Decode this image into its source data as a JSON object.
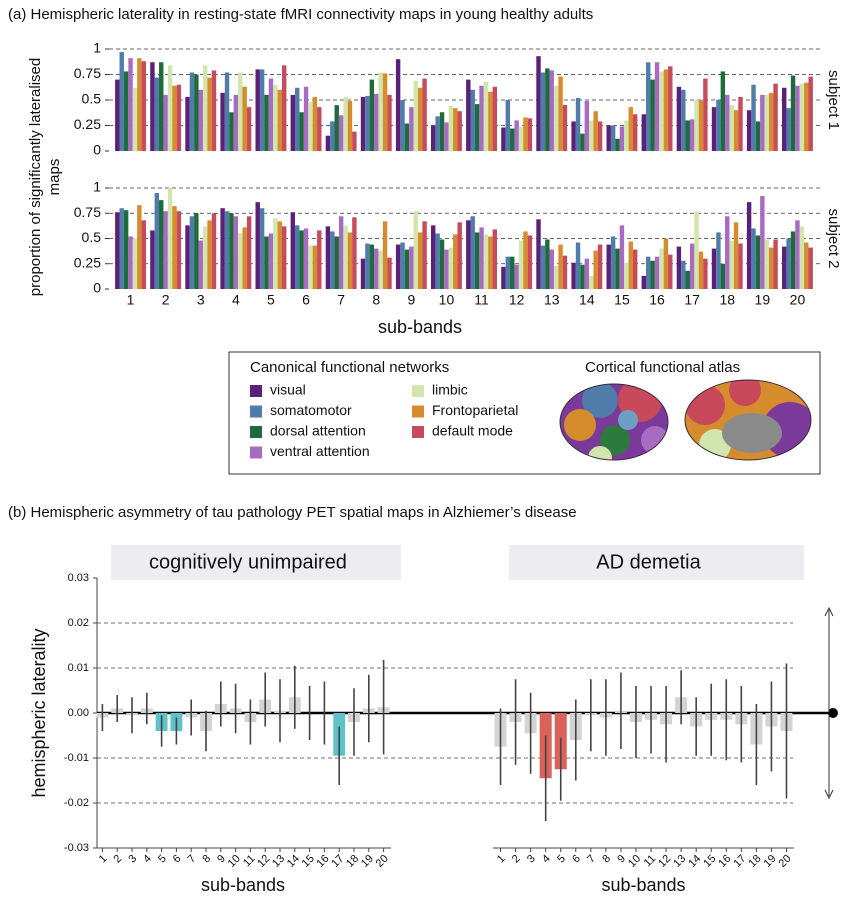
{
  "figure_a": {
    "title": "(a) Hemispheric laterality in resting-state fMRI connectivity maps in young healthy adults",
    "y_label": "proportion of significantly lateralised maps",
    "x_label": "sub-bands",
    "legend_title": "Canonical functional networks",
    "atlas_title": "Cortical functional atlas"
  },
  "figure_b": {
    "title": "(b) Hemispheric asymmetry of tau pathology PET spatial maps in Alzhiemer’s disease",
    "y_label": "hemispheric laterality"
  },
  "chart_data": [
    {
      "type": "grouped_bar",
      "subtitle": "subject 1",
      "ylim": [
        0,
        1
      ],
      "yticks": [
        0,
        0.25,
        0.5,
        0.75,
        1
      ],
      "grid": true,
      "series": [
        {
          "name": "visual",
          "color": "#5b2178",
          "values": [
            0.7,
            0.87,
            0.53,
            0.57,
            0.8,
            0.55,
            0.15,
            0.53,
            0.9,
            0.25,
            0.7,
            0.23,
            0.93,
            0.29,
            0.25,
            0.36,
            0.63,
            0.43,
            0.4,
            0.62
          ]
        },
        {
          "name": "somatomotor",
          "color": "#4f7ca8",
          "values": [
            0.97,
            0.72,
            0.77,
            0.77,
            0.8,
            0.62,
            0.29,
            0.54,
            0.5,
            0.34,
            0.6,
            0.5,
            0.77,
            0.52,
            0.25,
            0.87,
            0.6,
            0.5,
            0.65,
            0.42
          ]
        },
        {
          "name": "dorsal attention",
          "color": "#1e6b3b",
          "values": [
            0.78,
            0.87,
            0.75,
            0.38,
            0.55,
            0.38,
            0.45,
            0.7,
            0.27,
            0.38,
            0.46,
            0.22,
            0.81,
            0.17,
            0.12,
            0.7,
            0.3,
            0.78,
            0.29,
            0.74
          ]
        },
        {
          "name": "ventral attention",
          "color": "#a86bc2",
          "values": [
            0.91,
            0.55,
            0.6,
            0.55,
            0.71,
            0.63,
            0.35,
            0.56,
            0.43,
            0.28,
            0.64,
            0.3,
            0.79,
            0.49,
            0.24,
            0.87,
            0.31,
            0.55,
            0.55,
            0.64
          ]
        },
        {
          "name": "limbic",
          "color": "#d2e5ad",
          "values": [
            0.62,
            0.84,
            0.84,
            0.77,
            0.65,
            0.48,
            0.53,
            0.77,
            0.69,
            0.44,
            0.68,
            0.24,
            0.64,
            0.3,
            0.3,
            0.78,
            0.5,
            0.45,
            0.55,
            0.66
          ]
        },
        {
          "name": "Frontoparietal",
          "color": "#d68b2d",
          "values": [
            0.91,
            0.64,
            0.72,
            0.63,
            0.6,
            0.53,
            0.49,
            0.76,
            0.62,
            0.42,
            0.58,
            0.33,
            0.73,
            0.39,
            0.43,
            0.8,
            0.5,
            0.4,
            0.57,
            0.67
          ]
        },
        {
          "name": "default mode",
          "color": "#c44c5c",
          "values": [
            0.88,
            0.65,
            0.79,
            0.43,
            0.84,
            0.43,
            0.19,
            0.55,
            0.71,
            0.39,
            0.63,
            0.32,
            0.45,
            0.29,
            0.36,
            0.83,
            0.71,
            0.53,
            0.66,
            0.73
          ]
        }
      ]
    },
    {
      "type": "grouped_bar",
      "subtitle": "subject 2",
      "ylim": [
        0,
        1
      ],
      "yticks": [
        0,
        0.25,
        0.5,
        0.75,
        1
      ],
      "grid": true,
      "categories": [
        "1",
        "2",
        "3",
        "4",
        "5",
        "6",
        "7",
        "8",
        "9",
        "10",
        "11",
        "12",
        "13",
        "14",
        "15",
        "16",
        "17",
        "18",
        "19",
        "20"
      ],
      "series": [
        {
          "color": "#5b2178",
          "values": [
            0.76,
            0.58,
            0.63,
            0.8,
            0.86,
            0.76,
            0.62,
            0.3,
            0.44,
            0.63,
            0.68,
            0.22,
            0.69,
            0.26,
            0.44,
            0.13,
            0.42,
            0.4,
            0.86,
            0.42
          ]
        },
        {
          "color": "#4f7ca8",
          "values": [
            0.8,
            0.95,
            0.72,
            0.77,
            0.8,
            0.63,
            0.57,
            0.45,
            0.46,
            0.55,
            0.72,
            0.32,
            0.43,
            0.46,
            0.52,
            0.32,
            0.28,
            0.56,
            0.6,
            0.5
          ]
        },
        {
          "color": "#1e6b3b",
          "values": [
            0.78,
            0.88,
            0.75,
            0.75,
            0.52,
            0.58,
            0.52,
            0.44,
            0.39,
            0.49,
            0.56,
            0.32,
            0.49,
            0.24,
            0.4,
            0.28,
            0.18,
            0.25,
            0.53,
            0.57
          ]
        },
        {
          "color": "#a86bc2",
          "values": [
            0.52,
            0.77,
            0.48,
            0.72,
            0.55,
            0.6,
            0.72,
            0.4,
            0.42,
            0.39,
            0.61,
            0.24,
            0.39,
            0.3,
            0.63,
            0.32,
            0.45,
            0.72,
            0.92,
            0.68
          ]
        },
        {
          "color": "#d2e5ad",
          "values": [
            0.5,
            1.0,
            0.62,
            0.55,
            0.7,
            0.43,
            0.63,
            0.38,
            0.77,
            0.41,
            0.54,
            0.48,
            0.23,
            0.13,
            0.26,
            0.4,
            0.77,
            0.48,
            0.49,
            0.62
          ]
        },
        {
          "color": "#d68b2d",
          "values": [
            0.83,
            0.82,
            0.68,
            0.61,
            0.67,
            0.43,
            0.56,
            0.67,
            0.56,
            0.54,
            0.52,
            0.57,
            0.44,
            0.38,
            0.47,
            0.5,
            0.37,
            0.66,
            0.41,
            0.46
          ]
        },
        {
          "color": "#c44c5c",
          "values": [
            0.68,
            0.77,
            0.75,
            0.72,
            0.62,
            0.58,
            0.71,
            0.31,
            0.67,
            0.66,
            0.59,
            0.53,
            0.33,
            0.44,
            0.39,
            0.34,
            0.3,
            0.45,
            0.49,
            0.41
          ]
        }
      ]
    },
    {
      "type": "error_bar",
      "title": "cognitively unimpaired",
      "x_label": "sub-bands",
      "ylim": [
        -0.03,
        0.03
      ],
      "yticks": [
        0.03,
        0.02,
        0.01,
        {
          "value": 0,
          "label": "0.00"
        },
        -0.01,
        -0.02,
        -0.03
      ],
      "grid": true,
      "categories": [
        "1",
        "2",
        "3",
        "4",
        "5",
        "6",
        "7",
        "8",
        "9",
        "10",
        "11",
        "12",
        "13",
        "14",
        "15",
        "16",
        "17",
        "18",
        "19",
        "20"
      ],
      "values": [
        -0.001,
        0.001,
        -0.0005,
        0.001,
        -0.004,
        -0.004,
        -0.001,
        -0.004,
        0.002,
        0.001,
        -0.002,
        0.003,
        0.0005,
        0.0035,
        0,
        0,
        -0.0095,
        -0.002,
        0.001,
        0.0013
      ],
      "errors": [
        0.003,
        0.003,
        0.004,
        0.0035,
        0.0035,
        0.003,
        0.004,
        0.0045,
        0.005,
        0.0055,
        0.005,
        0.006,
        0.007,
        0.007,
        0.006,
        0.007,
        0.0065,
        0.0075,
        0.0075,
        0.0105
      ],
      "colors": [
        "#d3d3d3",
        "#d3d3d3",
        "#d3d3d3",
        "#d3d3d3",
        "#5ec3c9",
        "#5ec3c9",
        "#d3d3d3",
        "#d3d3d3",
        "#d3d3d3",
        "#d3d3d3",
        "#d3d3d3",
        "#d3d3d3",
        "#d3d3d3",
        "#d3d3d3",
        "#d3d3d3",
        "#d3d3d3",
        "#5ec3c9",
        "#d3d3d3",
        "#d3d3d3",
        "#d3d3d3"
      ]
    },
    {
      "type": "error_bar",
      "title": "AD demetia",
      "x_label": "sub-bands",
      "ylim": [
        -0.03,
        0.03
      ],
      "categories": [
        "1",
        "2",
        "3",
        "4",
        "5",
        "6",
        "7",
        "8",
        "9",
        "10",
        "11",
        "12",
        "13",
        "14",
        "15",
        "16",
        "17",
        "18",
        "19",
        "20"
      ],
      "values": [
        -0.0075,
        -0.002,
        -0.0045,
        -0.0145,
        -0.0125,
        -0.006,
        -0.0005,
        -0.001,
        0.0005,
        -0.002,
        -0.0015,
        -0.0025,
        0.0035,
        -0.003,
        -0.0015,
        -0.0015,
        -0.0025,
        -0.007,
        -0.003,
        -0.004
      ],
      "errors": [
        0.0085,
        0.0095,
        0.009,
        0.0095,
        0.007,
        0.009,
        0.008,
        0.0085,
        0.0085,
        0.008,
        0.0075,
        0.0085,
        0.006,
        0.0065,
        0.008,
        0.009,
        0.0085,
        0.009,
        0.01,
        0.015
      ],
      "colors": [
        "#d3d3d3",
        "#d3d3d3",
        "#d3d3d3",
        "#d9625a",
        "#d9625a",
        "#d3d3d3",
        "#d3d3d3",
        "#d3d3d3",
        "#d3d3d3",
        "#d3d3d3",
        "#d3d3d3",
        "#d3d3d3",
        "#d3d3d3",
        "#d3d3d3",
        "#d3d3d3",
        "#d3d3d3",
        "#d3d3d3",
        "#d3d3d3",
        "#d3d3d3",
        "#d3d3d3"
      ]
    }
  ]
}
